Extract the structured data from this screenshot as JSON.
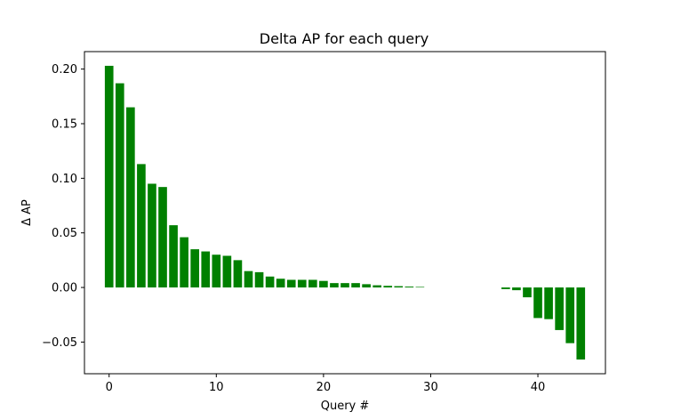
{
  "chart_data": {
    "type": "bar",
    "title": "Delta AP for each query",
    "xlabel": "Query #",
    "ylabel": "Δ AP",
    "x": [
      0,
      1,
      2,
      3,
      4,
      5,
      6,
      7,
      8,
      9,
      10,
      11,
      12,
      13,
      14,
      15,
      16,
      17,
      18,
      19,
      20,
      21,
      22,
      23,
      24,
      25,
      26,
      27,
      28,
      29,
      30,
      31,
      32,
      33,
      34,
      35,
      36,
      37,
      38,
      39,
      40,
      41,
      42,
      43,
      44
    ],
    "values": [
      0.203,
      0.187,
      0.165,
      0.113,
      0.095,
      0.092,
      0.057,
      0.046,
      0.035,
      0.033,
      0.03,
      0.029,
      0.025,
      0.015,
      0.014,
      0.01,
      0.008,
      0.007,
      0.007,
      0.007,
      0.006,
      0.004,
      0.004,
      0.004,
      0.003,
      0.002,
      0.0015,
      0.0012,
      0.0008,
      0.0005,
      0,
      0,
      0,
      0,
      0,
      0,
      0,
      -0.0015,
      -0.0025,
      -0.009,
      -0.028,
      -0.029,
      -0.039,
      -0.051,
      -0.066
    ],
    "xlim": [
      -2.3,
      46.3
    ],
    "ylim": [
      -0.079,
      0.216
    ],
    "xticks": [
      0,
      10,
      20,
      30,
      40
    ],
    "xtick_labels": [
      "0",
      "10",
      "20",
      "30",
      "40"
    ],
    "yticks": [
      -0.05,
      0.0,
      0.05,
      0.1,
      0.15,
      0.2
    ],
    "ytick_labels": [
      "−0.05",
      "0.00",
      "0.05",
      "0.10",
      "0.15",
      "0.20"
    ],
    "bar_color": "#008000",
    "grid": false,
    "legend": "none"
  }
}
